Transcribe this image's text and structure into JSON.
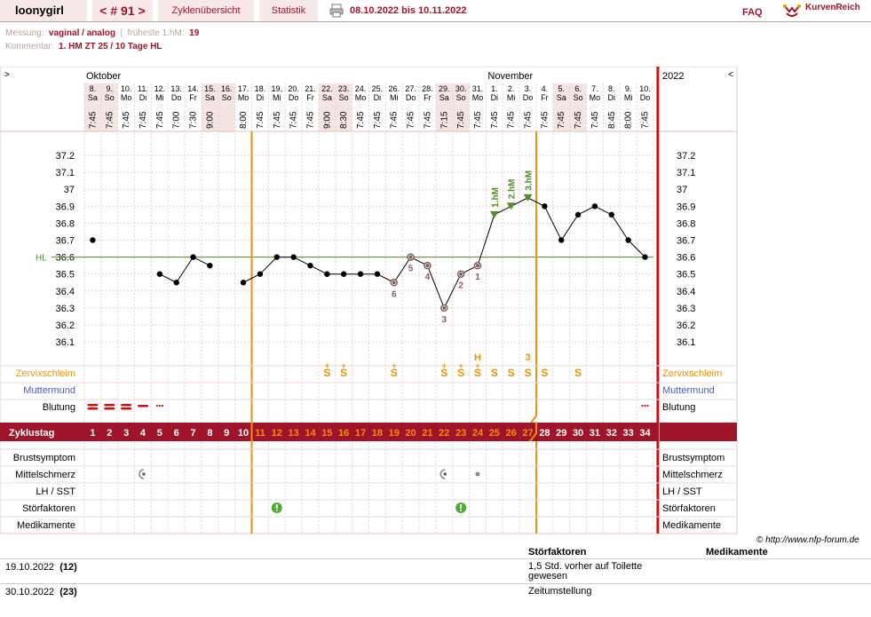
{
  "header": {
    "user": "loonygirl",
    "cycle_nav": "< # 91 >",
    "tab_overview": "Zyklenübersicht",
    "tab_statistics": "Statistik",
    "date_range": "08.10.2022 bis 10.11.2022",
    "faq": "FAQ",
    "logo_text": "KurvenReich"
  },
  "info": {
    "measurement_label": "Messung:",
    "measurement_value": "vaginal / analog",
    "earliest_label": "früheste 1.hM:",
    "earliest_value": "19",
    "comment_label": "Kommentar:",
    "comment_value": "1. HM ZT 25 / 10 Tage HL"
  },
  "chart_data": {
    "type": "line",
    "months": [
      {
        "name": "Oktober",
        "start_index": 0
      },
      {
        "name": "November",
        "start_index": 24
      }
    ],
    "year": "2022",
    "nav_prev": ">",
    "nav_next": "<",
    "days": [
      {
        "d": "8.",
        "w": "Sa",
        "t": "7:45",
        "we": true
      },
      {
        "d": "9.",
        "w": "So",
        "t": "7:45",
        "we": true
      },
      {
        "d": "10.",
        "w": "Mo",
        "t": "7:45"
      },
      {
        "d": "11.",
        "w": "Di",
        "t": "7:45"
      },
      {
        "d": "12.",
        "w": "Mi",
        "t": "7:45"
      },
      {
        "d": "13.",
        "w": "Do",
        "t": "7:00"
      },
      {
        "d": "14.",
        "w": "Fr",
        "t": "7:30"
      },
      {
        "d": "15.",
        "w": "Sa",
        "t": "9:00",
        "we": true
      },
      {
        "d": "16.",
        "w": "So",
        "t": "",
        "we": true
      },
      {
        "d": "17.",
        "w": "Mo",
        "t": "8:00"
      },
      {
        "d": "18.",
        "w": "Di",
        "t": "7:45"
      },
      {
        "d": "19.",
        "w": "Mi",
        "t": "7:45"
      },
      {
        "d": "20.",
        "w": "Do",
        "t": "7:45"
      },
      {
        "d": "21.",
        "w": "Fr",
        "t": "7:45"
      },
      {
        "d": "22.",
        "w": "Sa",
        "t": "9:00",
        "we": true
      },
      {
        "d": "23.",
        "w": "So",
        "t": "8:30",
        "we": true
      },
      {
        "d": "24.",
        "w": "Mo",
        "t": "7:45"
      },
      {
        "d": "25.",
        "w": "Di",
        "t": "7:45"
      },
      {
        "d": "26.",
        "w": "Mi",
        "t": "7:45"
      },
      {
        "d": "27.",
        "w": "Do",
        "t": "7:45"
      },
      {
        "d": "28.",
        "w": "Fr",
        "t": "7:45"
      },
      {
        "d": "29.",
        "w": "Sa",
        "t": "7:15",
        "we": true
      },
      {
        "d": "30.",
        "w": "So",
        "t": "7:45",
        "we": true
      },
      {
        "d": "31.",
        "w": "Mo",
        "t": "7:45"
      },
      {
        "d": "1.",
        "w": "Di",
        "t": "7:45"
      },
      {
        "d": "2.",
        "w": "Mi",
        "t": "7:45"
      },
      {
        "d": "3.",
        "w": "Do",
        "t": "7:45"
      },
      {
        "d": "4.",
        "w": "Fr",
        "t": "7:45"
      },
      {
        "d": "5.",
        "w": "Sa",
        "t": "7:45",
        "we": true
      },
      {
        "d": "6.",
        "w": "So",
        "t": "7:45",
        "we": true
      },
      {
        "d": "7.",
        "w": "Mo",
        "t": "7:45"
      },
      {
        "d": "8.",
        "w": "Di",
        "t": "8:45"
      },
      {
        "d": "9.",
        "w": "Mi",
        "t": "8:00"
      },
      {
        "d": "10.",
        "w": "Do",
        "t": "7:45"
      }
    ],
    "temps": [
      36.7,
      null,
      null,
      null,
      36.5,
      36.45,
      36.6,
      36.55,
      null,
      36.45,
      36.5,
      36.6,
      36.6,
      36.55,
      36.5,
      36.5,
      36.5,
      36.5,
      36.45,
      36.6,
      36.55,
      36.3,
      36.5,
      36.55,
      36.85,
      36.9,
      36.95,
      36.9,
      36.7,
      36.85,
      36.9,
      36.85,
      36.7,
      36.6
    ],
    "high_marks": [
      {
        "index": 24,
        "label": "1.hM"
      },
      {
        "index": 25,
        "label": "2.hM"
      },
      {
        "index": 26,
        "label": "3.hM"
      }
    ],
    "low_marks": [
      {
        "index": 18,
        "label": "6"
      },
      {
        "index": 19,
        "label": "5"
      },
      {
        "index": 20,
        "label": "4"
      },
      {
        "index": 21,
        "label": "3"
      },
      {
        "index": 22,
        "label": "2"
      },
      {
        "index": 23,
        "label": "1"
      }
    ],
    "y_ticks": [
      "37.2",
      "37.1",
      "37",
      "36.9",
      "36.8",
      "36.7",
      "36.6",
      "36.5",
      "36.4",
      "36.3",
      "36.2",
      "36.1"
    ],
    "ylim": [
      36.0,
      37.25
    ],
    "hl_label": "HL",
    "hl_value": 36.6,
    "cycle_days": [
      "1",
      "2",
      "3",
      "4",
      "5",
      "6",
      "7",
      "8",
      "9",
      "10",
      "11",
      "12",
      "13",
      "14",
      "15",
      "16",
      "17",
      "18",
      "19",
      "20",
      "21",
      "22",
      "23",
      "24",
      "25",
      "26",
      "27",
      "28",
      "29",
      "30",
      "31",
      "32",
      "33",
      "34"
    ],
    "cycle_label": "Zyklustag",
    "markers": {
      "fertile_start_index": 10,
      "peak_index": 26
    },
    "peak_label": "H",
    "peak_label_index": 23,
    "peak_count_label": "3",
    "peak_count_index": 26,
    "cervical": [
      null,
      null,
      null,
      null,
      null,
      null,
      null,
      null,
      null,
      null,
      null,
      null,
      null,
      null,
      "S+",
      "S+",
      null,
      null,
      "S+",
      null,
      null,
      "S+",
      "S+",
      "S+",
      "S",
      "S",
      "S",
      "S",
      null,
      "S",
      null,
      null,
      null,
      null
    ],
    "bleeding": [
      "heavy",
      "heavy",
      "heavy",
      "medium",
      "spot",
      null,
      null,
      null,
      null,
      null,
      null,
      null,
      null,
      null,
      null,
      null,
      null,
      null,
      null,
      null,
      null,
      null,
      null,
      null,
      null,
      null,
      null,
      null,
      null,
      null,
      null,
      null,
      null,
      "spot"
    ],
    "pain": [
      {
        "index": 3,
        "type": "half"
      },
      {
        "index": 21,
        "type": "half"
      },
      {
        "index": 23,
        "type": "dot"
      }
    ],
    "disturb": [
      11,
      22
    ],
    "row_labels": {
      "cervical": "Zervixschleim",
      "cervix": "Muttermund",
      "bleeding": "Blutung",
      "breast": "Brustsymptom",
      "midpain": "Mittelschmerz",
      "lh": "LH / SST",
      "disturb": "Störfaktoren",
      "meds": "Medikamente"
    }
  },
  "footer": {
    "credit": "© http://www.nfp-forum.de",
    "col_disturb": "Störfaktoren",
    "col_meds": "Medikamente",
    "rows": [
      {
        "date": "19.10.2022",
        "day": "(12)",
        "text": "1,5 Std. vorher auf Toilette gewesen"
      },
      {
        "date": "30.10.2022",
        "day": "(23)",
        "text": "Zeitumstellung"
      }
    ]
  },
  "colors": {
    "accent": "#a0142a",
    "orange": "#f0900a",
    "red_line": "#d01010",
    "green": "#5a8a2a",
    "grid": "#e8d0d0",
    "weekend": "#f4e4e4",
    "low_mark": "#806060"
  }
}
